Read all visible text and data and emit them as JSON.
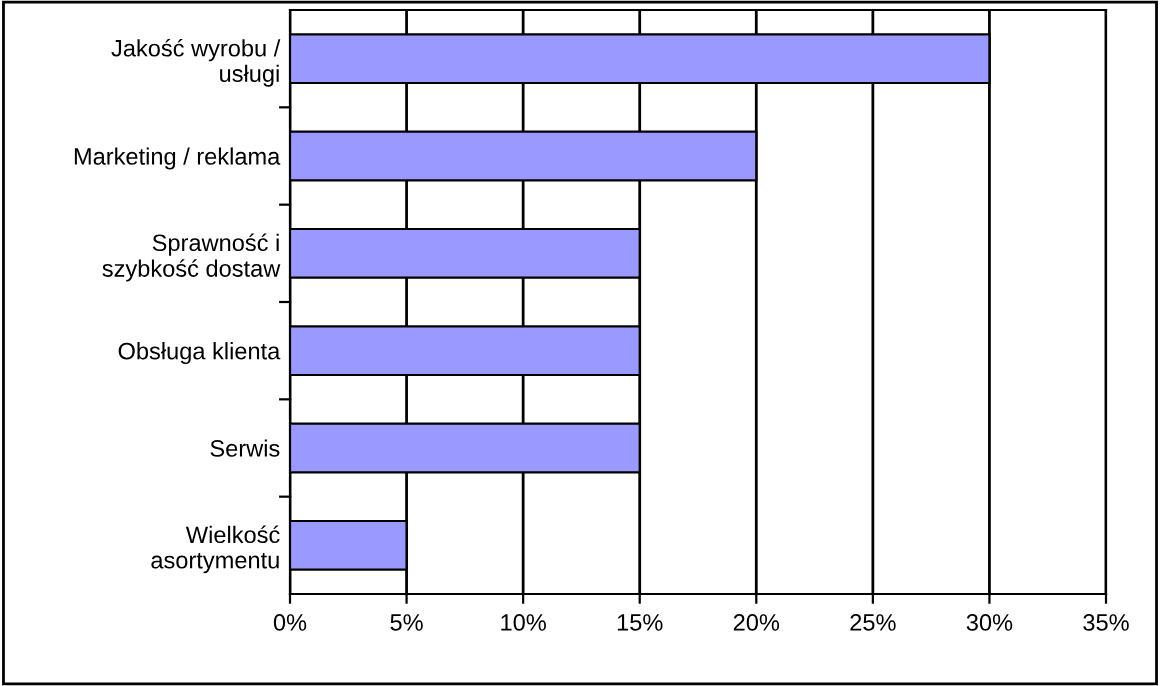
{
  "chart_data": {
    "type": "bar",
    "orientation": "horizontal",
    "categories": [
      "Jakość wyrobu /\nusługi",
      "Marketing / reklama",
      "Sprawność i\nszybkość dostaw",
      "Obsługa klienta",
      "Serwis",
      "Wielkość\nasortymentu"
    ],
    "values": [
      0.3,
      0.2,
      0.15,
      0.15,
      0.15,
      0.05
    ],
    "color": "#9999ff",
    "xlim": [
      0,
      0.35
    ],
    "xticks": [
      {
        "value": 0,
        "label": "0%"
      },
      {
        "value": 0.05,
        "label": "5%"
      },
      {
        "value": 0.1,
        "label": "10%"
      },
      {
        "value": 0.15,
        "label": "15%"
      },
      {
        "value": 0.2,
        "label": "20%"
      },
      {
        "value": 0.25,
        "label": "25%"
      },
      {
        "value": 0.3,
        "label": "30%"
      },
      {
        "value": 0.35,
        "label": "35%"
      }
    ],
    "grid": "x",
    "legend": false
  }
}
